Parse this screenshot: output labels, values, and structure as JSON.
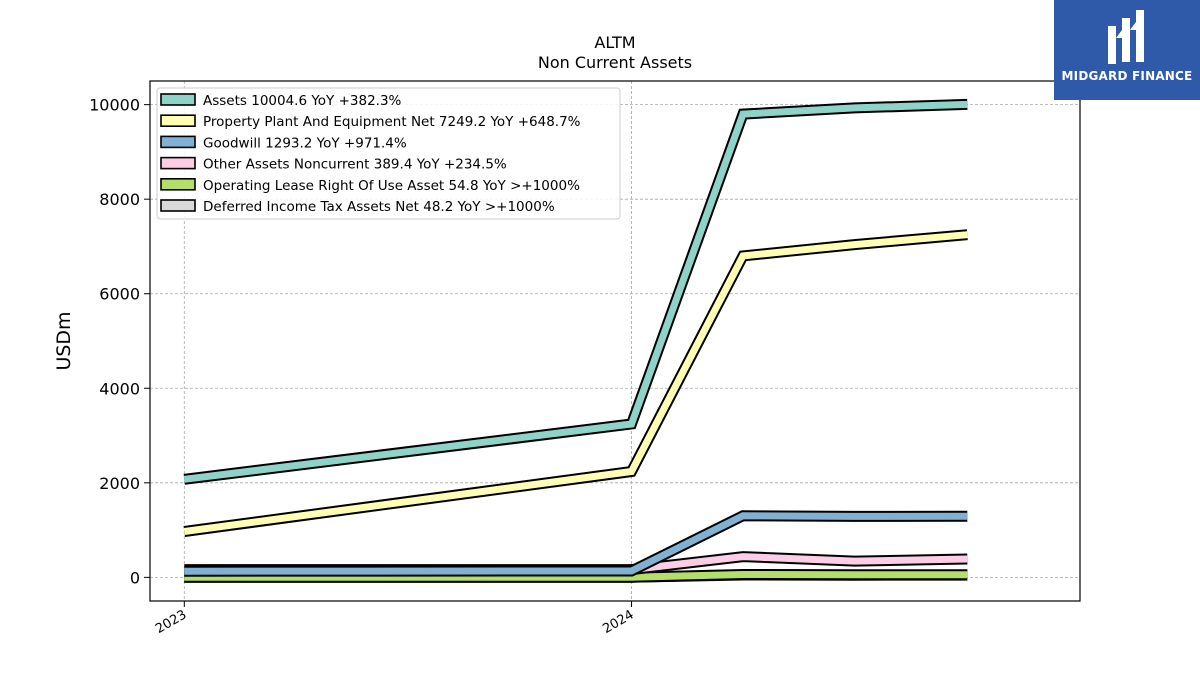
{
  "chart_data": {
    "type": "line",
    "title": "ALTM",
    "subtitle": "Non Current  Assets",
    "ylabel": "USDm",
    "xlabel": "",
    "x_ticks": [
      "2023",
      "2024"
    ],
    "y_ticks": [
      "0",
      "2000",
      "4000",
      "6000",
      "8000",
      "10000"
    ],
    "ylim": [
      -500,
      10500
    ],
    "grid": true,
    "legend_position": "top-left",
    "x": [
      "2023-01",
      "2024-01",
      "2024-04",
      "2024-07",
      "2024-10"
    ],
    "series": [
      {
        "name": "Assets",
        "legend": "Assets  10004.6 YoY +382.3%",
        "color": "#8dd3c7",
        "values": [
          2075,
          3245,
          9800,
          9930,
          10005
        ]
      },
      {
        "name": "Property Plant And Equipment Net",
        "legend": "Property Plant And Equipment Net  7249.2 YoY +648.7%",
        "color": "#ffffb3",
        "values": [
          970,
          2240,
          6800,
          7040,
          7249
        ]
      },
      {
        "name": "Goodwill",
        "legend": "Goodwill  1293.2 YoY +971.4%",
        "color": "#80b1d3",
        "values": [
          130,
          135,
          1305,
          1290,
          1293
        ]
      },
      {
        "name": "Other Assets Noncurrent",
        "legend": "Other Assets Noncurrent  389.4 YoY +234.5%",
        "color": "#fccde5",
        "values": [
          165,
          165,
          440,
          345,
          389
        ]
      },
      {
        "name": "Operating Lease Right Of Use Asset",
        "legend": "Operating Lease Right Of Use Asset  54.8 YoY >+1000%",
        "color": "#b3de69",
        "values": [
          2,
          3,
          60,
          55,
          55
        ]
      },
      {
        "name": "Deferred Income Tax Assets Net",
        "legend": "Deferred Income Tax Assets Net  48.2 YoY >+1000%",
        "color": "#d9d9d9",
        "values": [
          3,
          4,
          50,
          45,
          48
        ]
      }
    ]
  },
  "logo": {
    "text": "MIDGARD FINANCE"
  }
}
